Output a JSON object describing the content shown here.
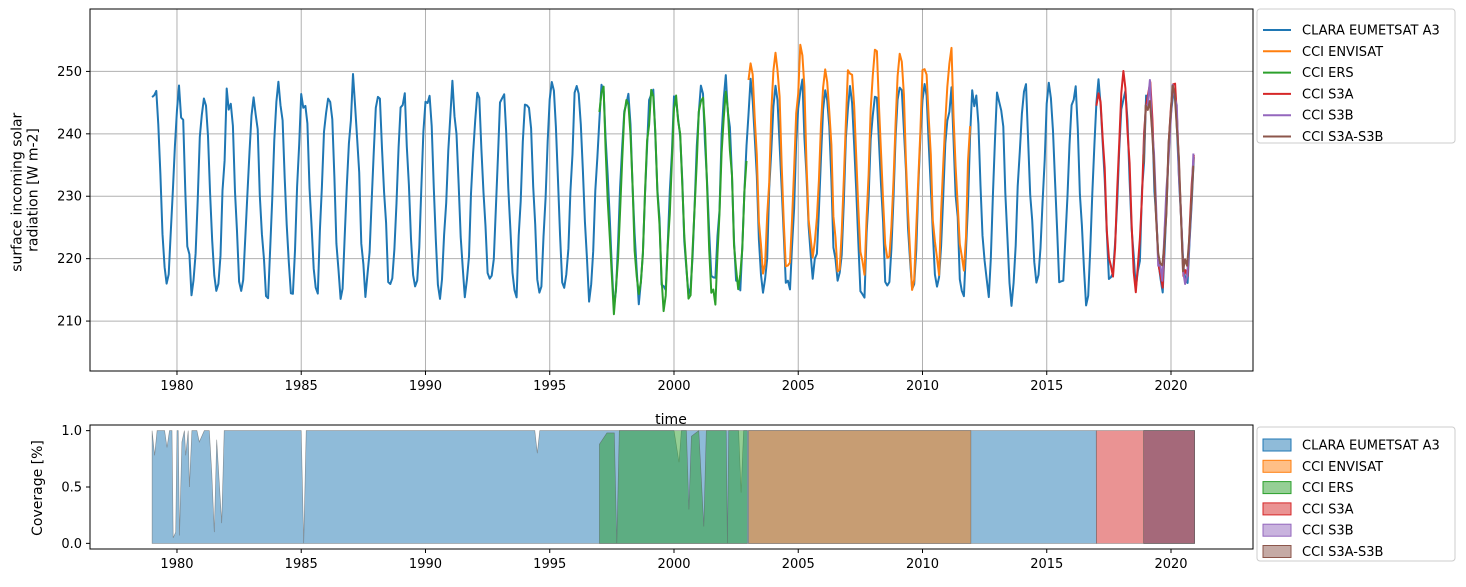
{
  "chart_data": [
    {
      "type": "line",
      "xlabel": "time",
      "ylabel": [
        "surface incoming solar",
        "radiation [W m-2]"
      ],
      "xlim": [
        1976.5,
        2023.3
      ],
      "ylim": [
        202.0,
        260.0
      ],
      "x_ticks": [
        1980,
        1985,
        1990,
        1995,
        2000,
        2005,
        2010,
        2015,
        2020
      ],
      "y_ticks": [
        210,
        220,
        230,
        240,
        250
      ],
      "grid": true,
      "legend_position": "outside-right",
      "series": [
        {
          "name": "CLARA EUMETSAT A3",
          "color": "#1f77b4",
          "start": 1979.0,
          "end": 2020.95,
          "mean": 231,
          "amplitude": 16,
          "phase": 0.0
        },
        {
          "name": "CCI ENVISAT",
          "color": "#ff7f0e",
          "start": 2003.0,
          "end": 2011.95,
          "mean": 235,
          "amplitude": 17,
          "phase": 0.0
        },
        {
          "name": "CCI ERS",
          "color": "#2ca02c",
          "start": 1997.0,
          "end": 2002.95,
          "mean": 230,
          "amplitude": 16,
          "phase": 0.0
        },
        {
          "name": "CCI S3A",
          "color": "#d62728",
          "start": 2017.0,
          "end": 2020.95,
          "mean": 232,
          "amplitude": 16,
          "phase": 0.0
        },
        {
          "name": "CCI S3B",
          "color": "#9467bd",
          "start": 2018.9,
          "end": 2020.95,
          "mean": 232,
          "amplitude": 15,
          "phase": 0.0
        },
        {
          "name": "CCI S3A-S3B",
          "color": "#8c564b",
          "start": 2018.9,
          "end": 2020.95,
          "mean": 232,
          "amplitude": 15,
          "phase": 0.0
        }
      ]
    },
    {
      "type": "area",
      "ylabel": "Coverage [%]",
      "xlim": [
        1976.5,
        2023.3
      ],
      "ylim": [
        -0.05,
        1.05
      ],
      "x_ticks": [
        1980,
        1985,
        1990,
        1995,
        2000,
        2005,
        2010,
        2015,
        2020
      ],
      "y_ticks": [
        0.0,
        0.5,
        1.0
      ],
      "y_tick_labels": [
        "0.0",
        "0.5",
        "1.0"
      ],
      "legend_position": "outside-right",
      "series": [
        {
          "name": "CLARA EUMETSAT A3",
          "color": "#1f77b4",
          "opacity": 0.5,
          "points": [
            [
              1979.0,
              1.0
            ],
            [
              1979.1,
              0.78
            ],
            [
              1979.2,
              1.0
            ],
            [
              1979.5,
              1.0
            ],
            [
              1979.6,
              0.85
            ],
            [
              1979.7,
              1.0
            ],
            [
              1979.8,
              1.0
            ],
            [
              1979.85,
              0.05
            ],
            [
              1979.95,
              0.1
            ],
            [
              1980.0,
              1.0
            ],
            [
              1980.05,
              1.0
            ],
            [
              1980.1,
              0.07
            ],
            [
              1980.2,
              0.9
            ],
            [
              1980.3,
              1.0
            ],
            [
              1980.35,
              0.78
            ],
            [
              1980.45,
              1.0
            ],
            [
              1980.5,
              0.5
            ],
            [
              1980.6,
              1.0
            ],
            [
              1980.8,
              1.0
            ],
            [
              1980.9,
              0.9
            ],
            [
              1981.1,
              1.0
            ],
            [
              1981.3,
              1.0
            ],
            [
              1981.4,
              0.62
            ],
            [
              1981.5,
              0.1
            ],
            [
              1981.6,
              0.92
            ],
            [
              1981.8,
              0.18
            ],
            [
              1981.9,
              1.0
            ],
            [
              1985.0,
              1.0
            ],
            [
              1985.1,
              0.0
            ],
            [
              1985.2,
              1.0
            ],
            [
              1994.4,
              1.0
            ],
            [
              1994.5,
              0.8
            ],
            [
              1994.6,
              1.0
            ],
            [
              1997.0,
              1.0
            ],
            [
              2000.0,
              1.0
            ],
            [
              2000.2,
              0.72
            ],
            [
              2000.3,
              1.0
            ],
            [
              2002.6,
              1.0
            ],
            [
              2002.7,
              0.45
            ],
            [
              2002.8,
              1.0
            ],
            [
              2016.99,
              1.0
            ],
            [
              2017.0,
              0.0
            ]
          ]
        },
        {
          "name": "CCI ENVISAT",
          "color": "#ff7f0e",
          "opacity": 0.5,
          "points": [
            [
              2003.0,
              0.0
            ],
            [
              2003.0,
              1.0
            ],
            [
              2011.95,
              1.0
            ],
            [
              2011.95,
              0.0
            ]
          ]
        },
        {
          "name": "CCI ERS",
          "color": "#2ca02c",
          "opacity": 0.5,
          "points": [
            [
              1997.0,
              0.0
            ],
            [
              1997.0,
              0.88
            ],
            [
              1997.3,
              0.98
            ],
            [
              1997.6,
              0.98
            ],
            [
              1997.7,
              0.0
            ],
            [
              1997.8,
              1.0
            ],
            [
              2000.5,
              1.0
            ],
            [
              2000.6,
              0.3
            ],
            [
              2000.7,
              0.95
            ],
            [
              2001.0,
              1.0
            ],
            [
              2001.2,
              0.15
            ],
            [
              2001.3,
              1.0
            ],
            [
              2002.1,
              1.0
            ],
            [
              2002.15,
              0.0
            ],
            [
              2002.2,
              1.0
            ],
            [
              2002.95,
              1.0
            ],
            [
              2002.95,
              0.0
            ]
          ]
        },
        {
          "name": "CCI S3A",
          "color": "#d62728",
          "opacity": 0.5,
          "points": [
            [
              2017.0,
              0.0
            ],
            [
              2017.0,
              1.0
            ],
            [
              2020.95,
              1.0
            ],
            [
              2020.95,
              0.0
            ]
          ]
        },
        {
          "name": "CCI S3B",
          "color": "#9467bd",
          "opacity": 0.5,
          "points": [
            [
              2018.9,
              0.0
            ],
            [
              2018.9,
              1.0
            ],
            [
              2020.95,
              1.0
            ],
            [
              2020.95,
              0.0
            ]
          ]
        },
        {
          "name": "CCI S3A-S3B",
          "color": "#8c564b",
          "opacity": 0.5,
          "points": [
            [
              2018.9,
              0.0
            ],
            [
              2018.9,
              1.0
            ],
            [
              2020.95,
              1.0
            ],
            [
              2020.95,
              0.0
            ]
          ]
        }
      ]
    }
  ]
}
